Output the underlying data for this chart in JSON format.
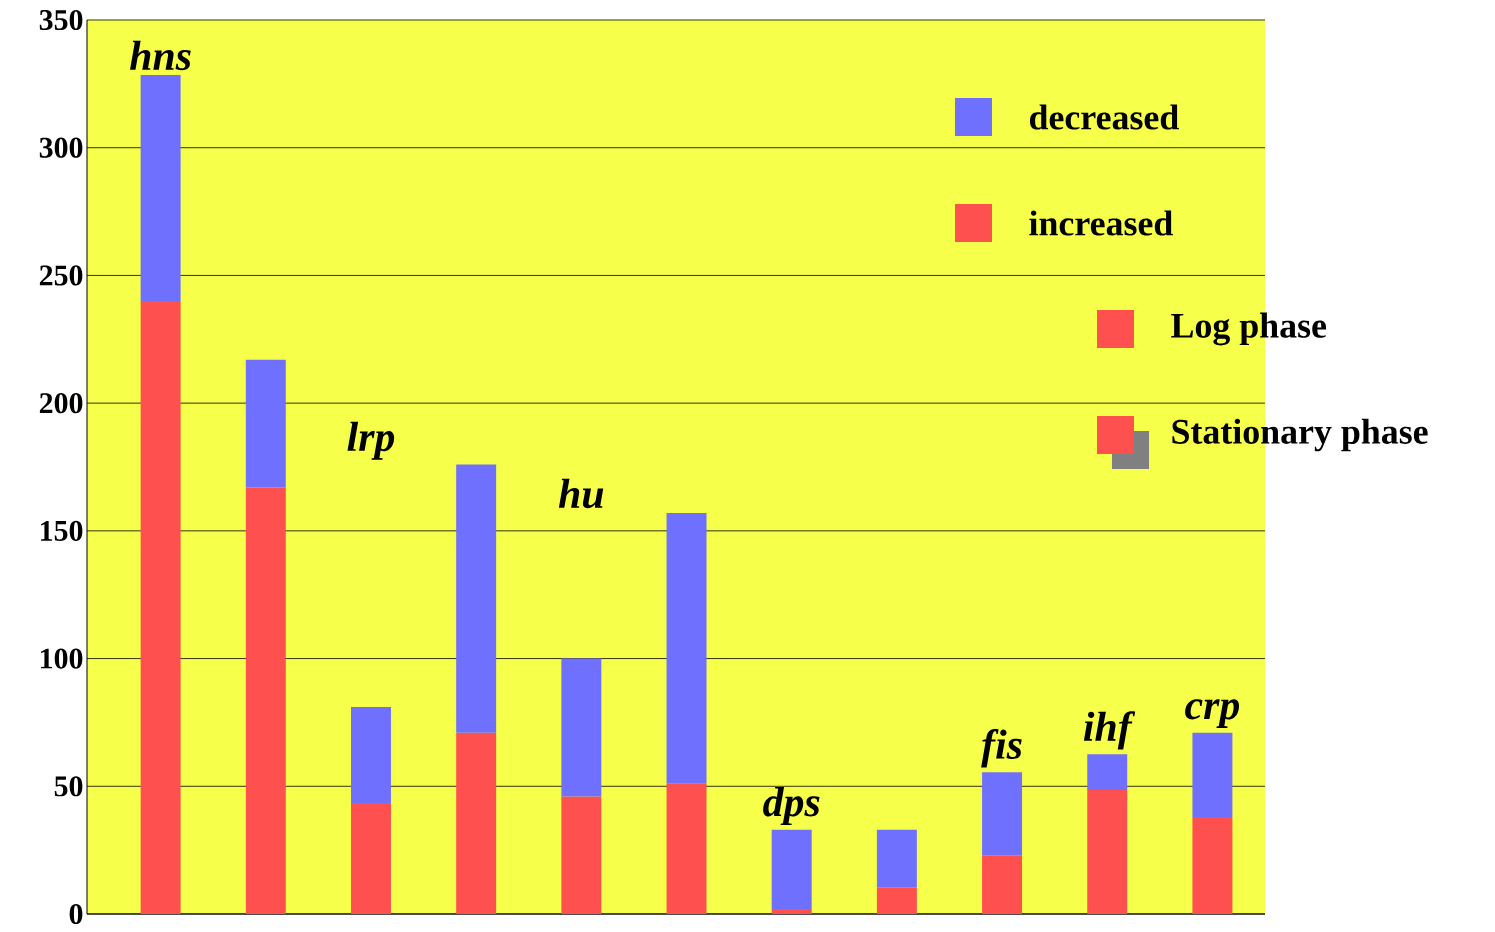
{
  "chart_data": {
    "type": "bar",
    "stacked": true,
    "categories": [
      "hns",
      null,
      "lrp",
      null,
      "hu",
      null,
      "dps",
      null,
      "fis",
      "ihf",
      "crp"
    ],
    "series": [
      {
        "name": "increased",
        "color": "#ff5050",
        "values": [
          240,
          167,
          43.5,
          71,
          46,
          51,
          2,
          10.5,
          23,
          48.5,
          38
        ]
      },
      {
        "name": "decreased",
        "color": "#7070ff",
        "values": [
          88.5,
          50,
          37.5,
          105,
          54,
          106,
          31,
          22.5,
          32.5,
          14,
          33
        ]
      }
    ],
    "annotations": [
      "Log phase",
      "Stationary phase"
    ],
    "ylim": [
      0,
      350
    ],
    "yticks": [
      0,
      50,
      100,
      150,
      200,
      250,
      300,
      350
    ],
    "grid": "y",
    "legend": "top right"
  }
}
